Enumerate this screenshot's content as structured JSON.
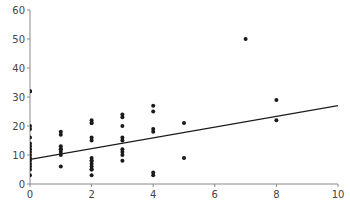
{
  "chart_data": {
    "type": "scatter",
    "series": [
      {
        "type": "scatter",
        "color": "#1a1a1a",
        "x": [
          0,
          0,
          0,
          0,
          0,
          0,
          0,
          0,
          0,
          0,
          0,
          0,
          0,
          0,
          0,
          0,
          1,
          1,
          1,
          1,
          1,
          1,
          1,
          1,
          2,
          2,
          2,
          2,
          2,
          2,
          2,
          2,
          2,
          2,
          2,
          2,
          2,
          3,
          3,
          3,
          3,
          3,
          3,
          3,
          3,
          3,
          4,
          4,
          4,
          4,
          4,
          4,
          5,
          5,
          7,
          8,
          8
        ],
        "values": [
          32,
          32,
          20,
          19,
          16,
          14,
          13,
          12,
          11,
          10,
          9,
          8,
          7,
          6,
          5,
          3,
          18,
          17,
          13,
          12,
          12,
          11,
          10,
          6,
          22,
          21,
          21,
          16,
          15,
          9,
          8,
          8,
          7,
          6,
          5,
          5,
          3,
          24,
          23,
          20,
          16,
          15,
          12,
          11,
          10,
          8,
          27,
          25,
          19,
          18,
          4,
          3,
          21,
          9,
          50,
          29,
          22
        ]
      },
      {
        "type": "line",
        "color": "#1a1a1a",
        "x": [
          0,
          10
        ],
        "values": [
          8.5,
          27.0
        ]
      }
    ],
    "xlim": [
      0,
      10
    ],
    "ylim": [
      0,
      60
    ],
    "xticks": [
      0,
      2,
      4,
      6,
      8,
      10
    ],
    "yticks": [
      0,
      10,
      20,
      30,
      40,
      50,
      60
    ],
    "grid": false
  }
}
